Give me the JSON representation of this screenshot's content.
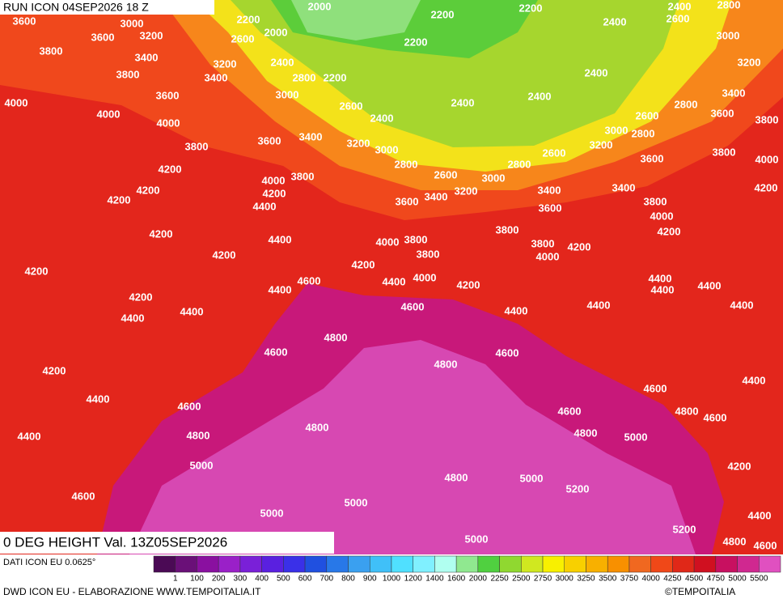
{
  "header": {
    "run": "RUN ICON 04SEP2026 18 Z"
  },
  "title": "0 DEG HEIGHT Val. 13Z05SEP2026",
  "source": "DATI ICON EU 0.0625°",
  "credit": "DWD ICON EU - ELABORAZIONE WWW.TEMPOITALIA.IT",
  "copyright": "©TEMPOITALIA",
  "legend": {
    "labels": [
      "1",
      "100",
      "200",
      "300",
      "400",
      "500",
      "600",
      "700",
      "800",
      "900",
      "1000",
      "1200",
      "1400",
      "1600",
      "2000",
      "2250",
      "2500",
      "2750",
      "3000",
      "3250",
      "3500",
      "3750",
      "4000",
      "4250",
      "4500",
      "4750",
      "5000",
      "5500"
    ],
    "colors": [
      "#4b0a55",
      "#6a1078",
      "#8a10a0",
      "#9a20c8",
      "#7a20d8",
      "#5a20e0",
      "#3a30e8",
      "#2050e0",
      "#2878e8",
      "#3aa0f0",
      "#40c0f8",
      "#50e0ff",
      "#80f0ff",
      "#b0fff0",
      "#90e890",
      "#50d040",
      "#90d830",
      "#d0e820",
      "#f8f000",
      "#f8d000",
      "#f8b000",
      "#f89000",
      "#f06820",
      "#f04818",
      "#e02818",
      "#d01020",
      "#c81060",
      "#d02890",
      "#e050c0"
    ]
  },
  "contour_labels": [
    3600,
    3000,
    3600,
    3200,
    2000,
    2200,
    2200,
    2400,
    2800,
    2200,
    2000,
    2600,
    3800,
    3400,
    3200,
    2400,
    2200,
    2800,
    2200,
    2400,
    2600,
    3000,
    3200,
    3800,
    3400,
    3000,
    2400,
    4000,
    4000,
    3600,
    2600,
    2400,
    2400,
    2400,
    3400,
    2800,
    3600,
    3800,
    4000,
    3600,
    3400,
    3200,
    3000,
    3000,
    2600,
    2800,
    3200,
    3800,
    2600,
    3800,
    4000,
    4200,
    2800,
    2600,
    3000,
    2800,
    3600,
    4000,
    3800,
    4200,
    4200,
    3400,
    3200,
    3600,
    3400,
    3400,
    4200,
    4400,
    4200,
    3800,
    3600,
    4000,
    4200,
    4400,
    4000,
    3800,
    3800,
    4200,
    3800,
    4200,
    3800,
    4200,
    4000,
    4200,
    4200,
    4600,
    4400,
    4000,
    4200,
    4400,
    4400,
    4400,
    4400,
    4200,
    4600,
    4400,
    4400,
    4400,
    4400,
    4400,
    4800,
    4600,
    4600,
    4800,
    4200,
    4400,
    4600,
    4400,
    4600,
    4600,
    4800,
    4600,
    4800,
    4800,
    4800,
    5000,
    4400,
    5000,
    4200,
    4800,
    5000,
    5200,
    4600,
    5000,
    5000,
    4400,
    5200,
    5000,
    4800,
    4600
  ]
}
